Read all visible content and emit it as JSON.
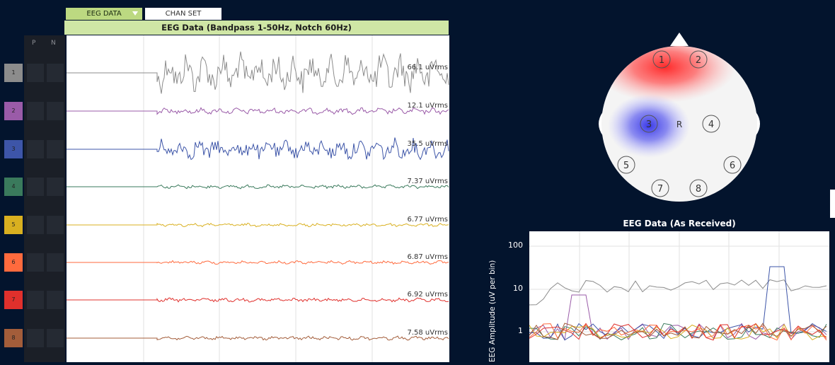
{
  "tabs": {
    "eeg_data": "EEG DATA",
    "chan_set": "CHAN SET"
  },
  "timeseries": {
    "title": "EEG Data (Bandpass 1-50Hz, Notch 60Hz)",
    "col_p": "P",
    "col_n": "N",
    "channels": [
      {
        "num": "1",
        "color": "#8c8c8c",
        "rms": "66.1 uVrms",
        "amp": 26
      },
      {
        "num": "2",
        "color": "#9a5ba8",
        "rms": "12.1 uVrms",
        "amp": 4
      },
      {
        "num": "3",
        "color": "#3d55a8",
        "rms": "35.5 uVrms",
        "amp": 14
      },
      {
        "num": "4",
        "color": "#3a7a5c",
        "rms": "7.37 uVrms",
        "amp": 2.5
      },
      {
        "num": "5",
        "color": "#d9b020",
        "rms": "6.77 uVrms",
        "amp": 2.2
      },
      {
        "num": "6",
        "color": "#ff6a3d",
        "rms": "6.87 uVrms",
        "amp": 2.2
      },
      {
        "num": "7",
        "color": "#e0302c",
        "rms": "6.92 uVrms",
        "amp": 2.5
      },
      {
        "num": "8",
        "color": "#a35d3a",
        "rms": "7.58 uVrms",
        "amp": 2.5
      }
    ]
  },
  "headplot": {
    "electrodes": [
      "1",
      "2",
      "3",
      "4",
      "5",
      "6",
      "7",
      "8"
    ],
    "reference": "R"
  },
  "fft": {
    "title": "EEG Data (As Received)",
    "ylabel": "EEG Amplitude (uV per bin)",
    "yticks": [
      "100",
      "10",
      "1"
    ]
  }
}
